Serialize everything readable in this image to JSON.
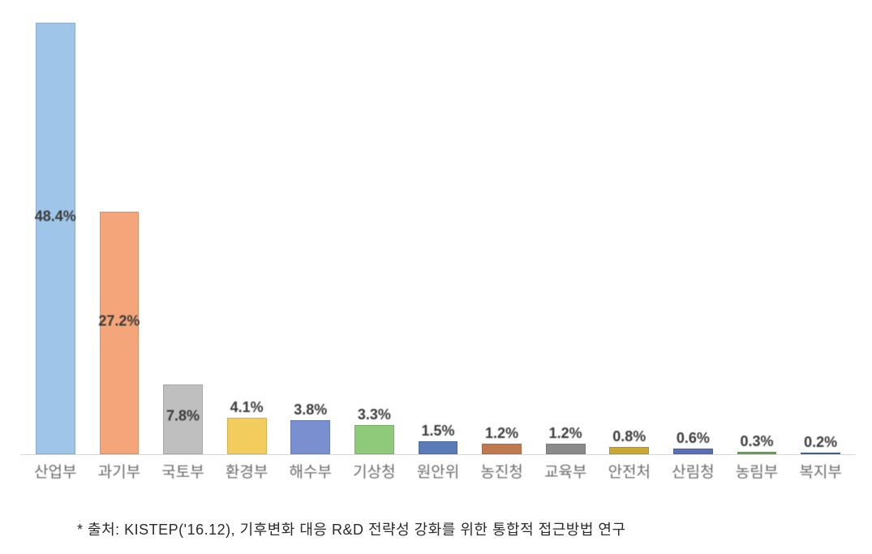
{
  "chart": {
    "type": "bar",
    "ymax": 50,
    "background_color": "#ffffff",
    "axis_color": "#d9d9d9",
    "label_color": "#3a3a3a",
    "tick_color": "#6b6b6b",
    "label_fontsize": 18,
    "tick_fontsize": 19,
    "bar_width_ratio": 0.62,
    "bars": [
      {
        "category": "산업부",
        "value": 48.4,
        "label": "48.4%",
        "color": "#9fc5e8"
      },
      {
        "category": "과기부",
        "value": 27.2,
        "label": "27.2%",
        "color": "#f4a67a"
      },
      {
        "category": "국토부",
        "value": 7.8,
        "label": "7.8%",
        "color": "#bfbfbf"
      },
      {
        "category": "환경부",
        "value": 4.1,
        "label": "4.1%",
        "color": "#f2cd5e"
      },
      {
        "category": "해수부",
        "value": 3.8,
        "label": "3.8%",
        "color": "#7a8fd0"
      },
      {
        "category": "기상청",
        "value": 3.3,
        "label": "3.3%",
        "color": "#8fc97a"
      },
      {
        "category": "원안위",
        "value": 1.5,
        "label": "1.5%",
        "color": "#5a7bb5"
      },
      {
        "category": "농진청",
        "value": 1.2,
        "label": "1.2%",
        "color": "#c07a4d"
      },
      {
        "category": "교육부",
        "value": 1.2,
        "label": "1.2%",
        "color": "#8a8a8a"
      },
      {
        "category": "안전처",
        "value": 0.8,
        "label": "0.8%",
        "color": "#c9a933"
      },
      {
        "category": "산림청",
        "value": 0.6,
        "label": "0.6%",
        "color": "#5a6fb5"
      },
      {
        "category": "농림부",
        "value": 0.3,
        "label": "0.3%",
        "color": "#6fa85a"
      },
      {
        "category": "복지부",
        "value": 0.2,
        "label": "0.2%",
        "color": "#4a6aa5"
      }
    ]
  },
  "footnote": "* 출처: KISTEP('16.12), 기후변화 대응 R&D 전략성 강화를 위한 통합적 접근방법 연구"
}
